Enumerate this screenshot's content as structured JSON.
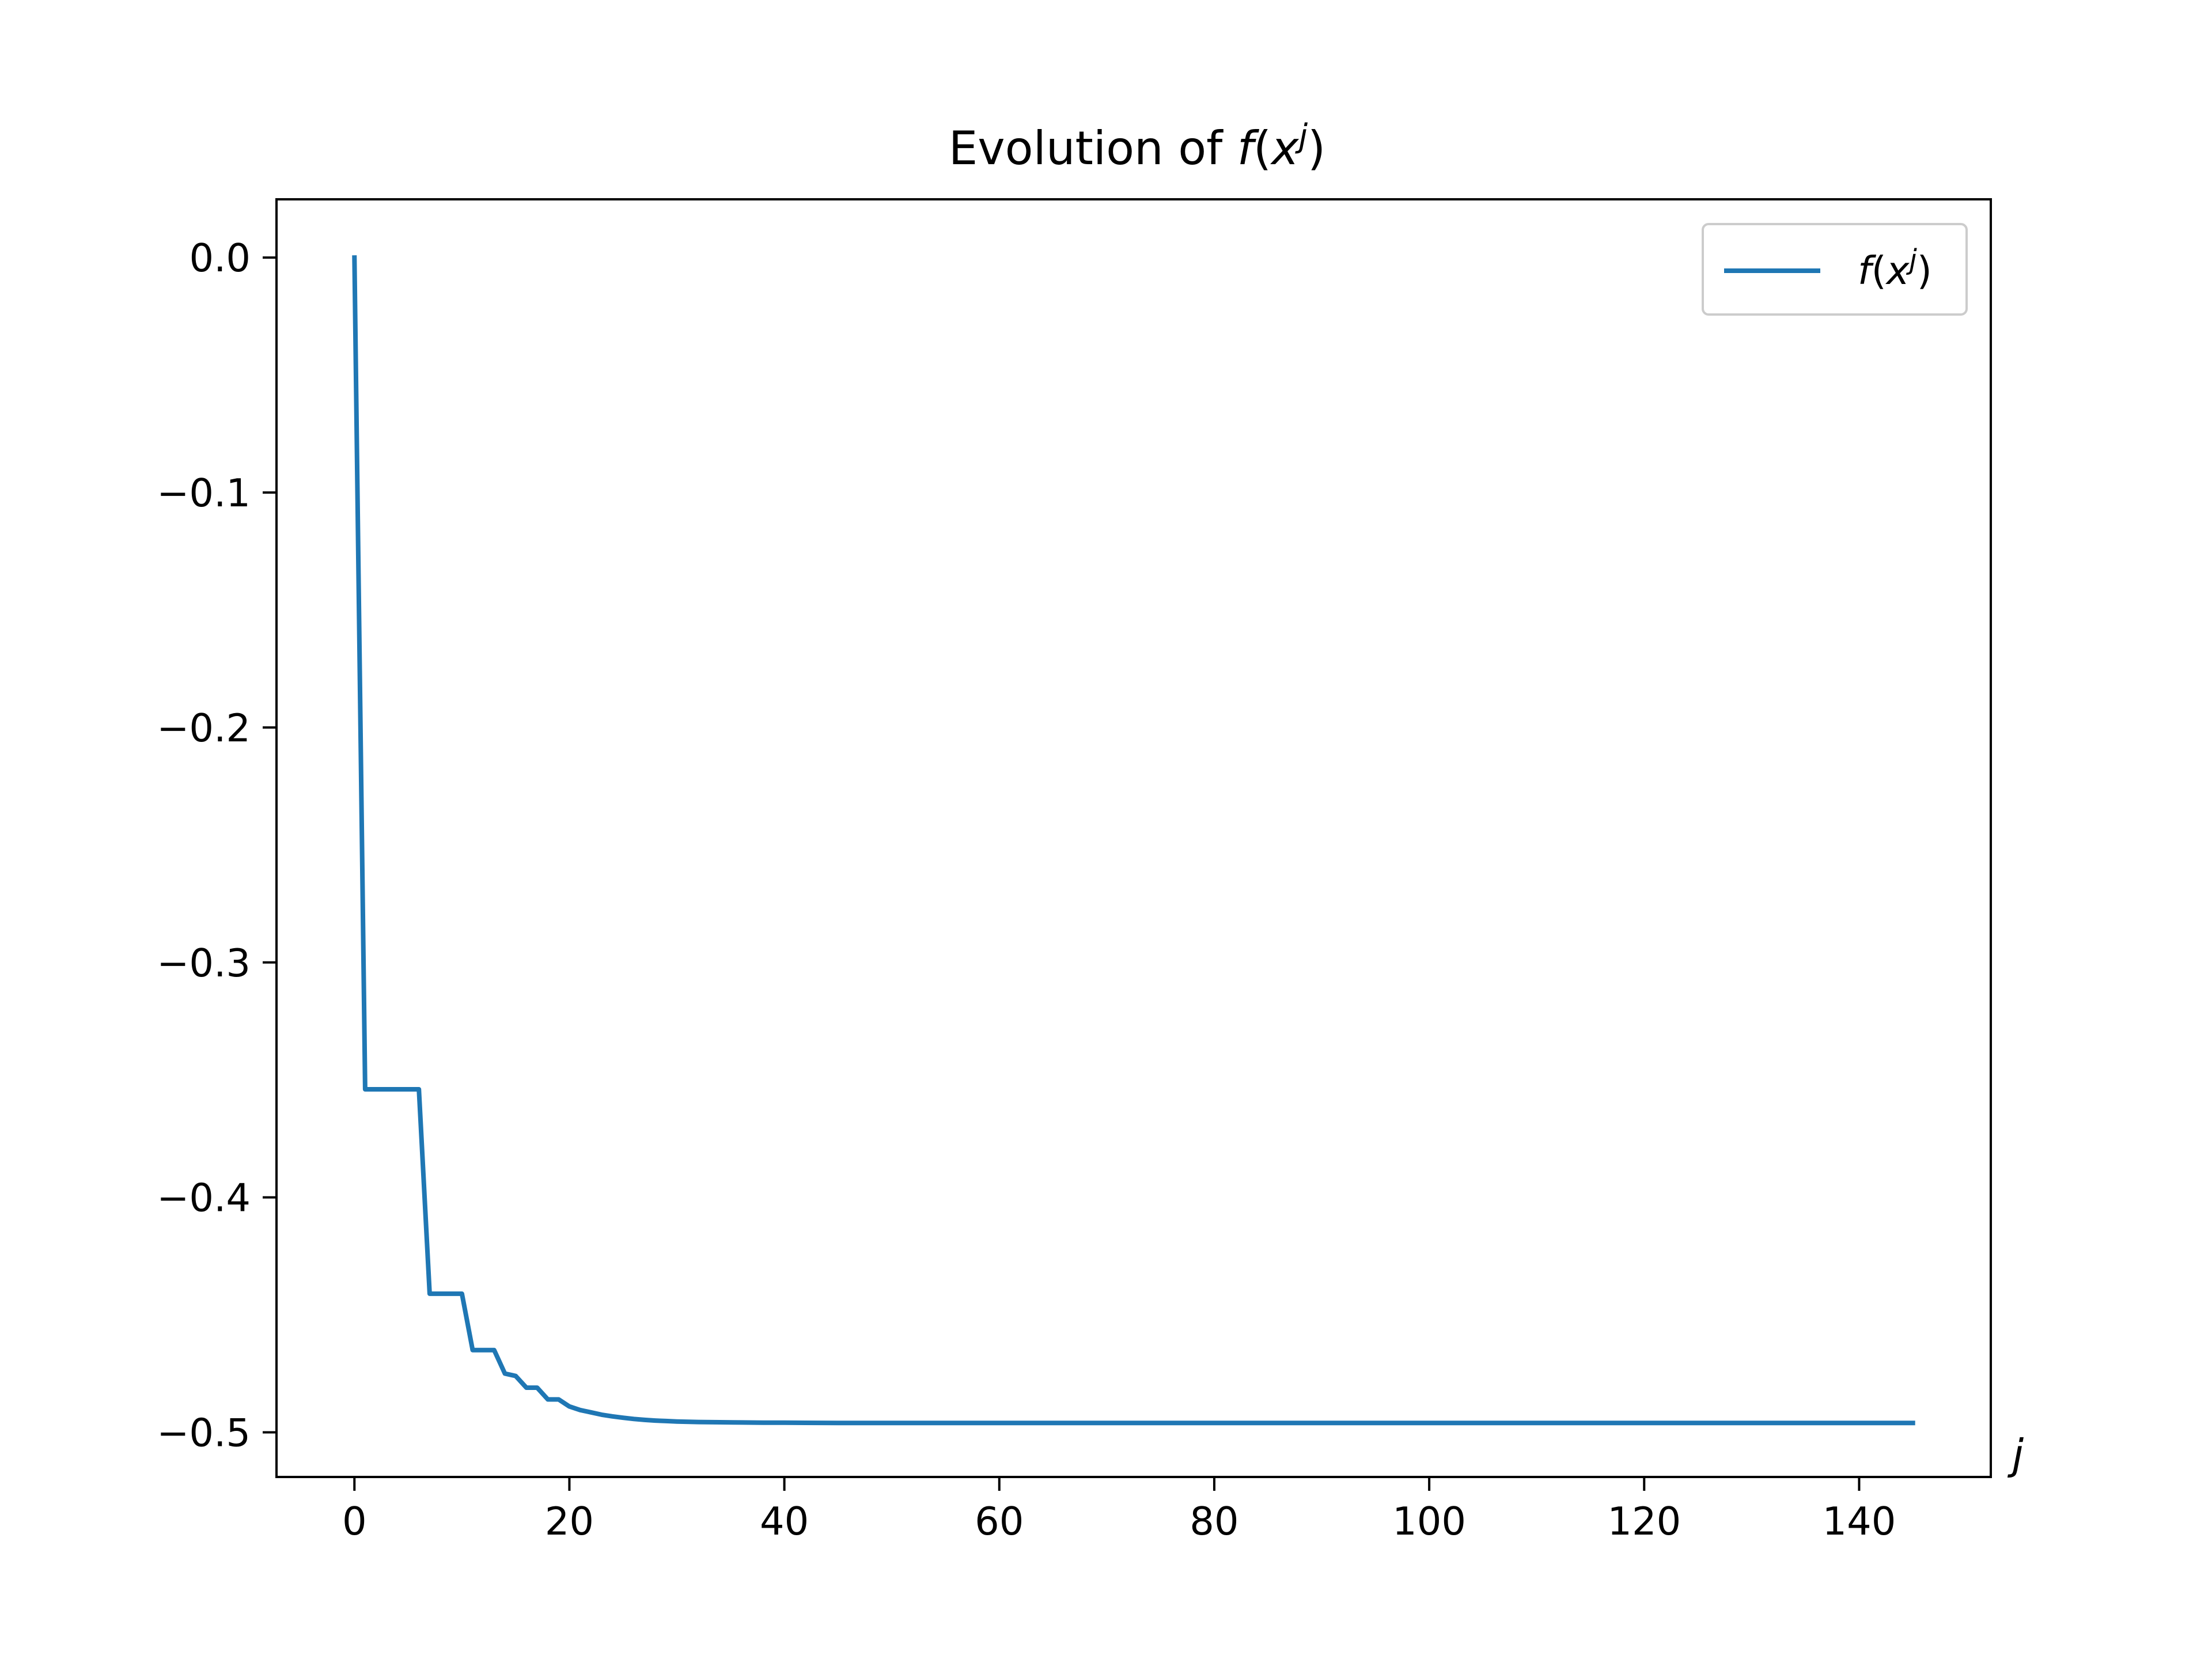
{
  "chart_data": {
    "type": "line",
    "title": {
      "prefix": "Evolution of ",
      "func": "f",
      "open": "(",
      "var": "x",
      "sup": "j",
      "close": ")"
    },
    "xlabel": "j",
    "ylabel": "",
    "xlim": [
      -7.25,
      152.25
    ],
    "ylim": [
      -0.519,
      0.0248
    ],
    "xticks": [
      0,
      20,
      40,
      60,
      80,
      100,
      120,
      140
    ],
    "xtick_labels": [
      "0",
      "20",
      "40",
      "60",
      "80",
      "100",
      "120",
      "140"
    ],
    "yticks": [
      0.0,
      -0.1,
      -0.2,
      -0.3,
      -0.4,
      -0.5
    ],
    "ytick_labels": [
      "0.0",
      "−0.1",
      "−0.2",
      "−0.3",
      "−0.4",
      "−0.5"
    ],
    "grid": false,
    "legend": {
      "position": "upper right",
      "entries": [
        {
          "func": "f",
          "open": "(",
          "var": "x",
          "sup": "j",
          "close": ")"
        }
      ]
    },
    "series": [
      {
        "color": "#1f77b4",
        "x": [
          0,
          1,
          2,
          3,
          4,
          5,
          6,
          7,
          8,
          9,
          10,
          11,
          12,
          13,
          14,
          15,
          16,
          17,
          18,
          19,
          20,
          21,
          22,
          23,
          24,
          25,
          26,
          27,
          28,
          29,
          30,
          32,
          34,
          36,
          38,
          40,
          45,
          50,
          60,
          70,
          80,
          90,
          100,
          110,
          120,
          130,
          140,
          145
        ],
        "y": [
          0.0,
          -0.354,
          -0.354,
          -0.354,
          -0.354,
          -0.354,
          -0.354,
          -0.441,
          -0.441,
          -0.441,
          -0.441,
          -0.465,
          -0.465,
          -0.465,
          -0.475,
          -0.476,
          -0.481,
          -0.481,
          -0.486,
          -0.486,
          -0.489,
          -0.4905,
          -0.4915,
          -0.4925,
          -0.4932,
          -0.4938,
          -0.4943,
          -0.4947,
          -0.495,
          -0.4952,
          -0.4954,
          -0.4956,
          -0.4957,
          -0.4958,
          -0.4959,
          -0.4959,
          -0.496,
          -0.496,
          -0.496,
          -0.496,
          -0.496,
          -0.496,
          -0.496,
          -0.496,
          -0.496,
          -0.496,
          -0.496,
          -0.496
        ]
      }
    ]
  }
}
